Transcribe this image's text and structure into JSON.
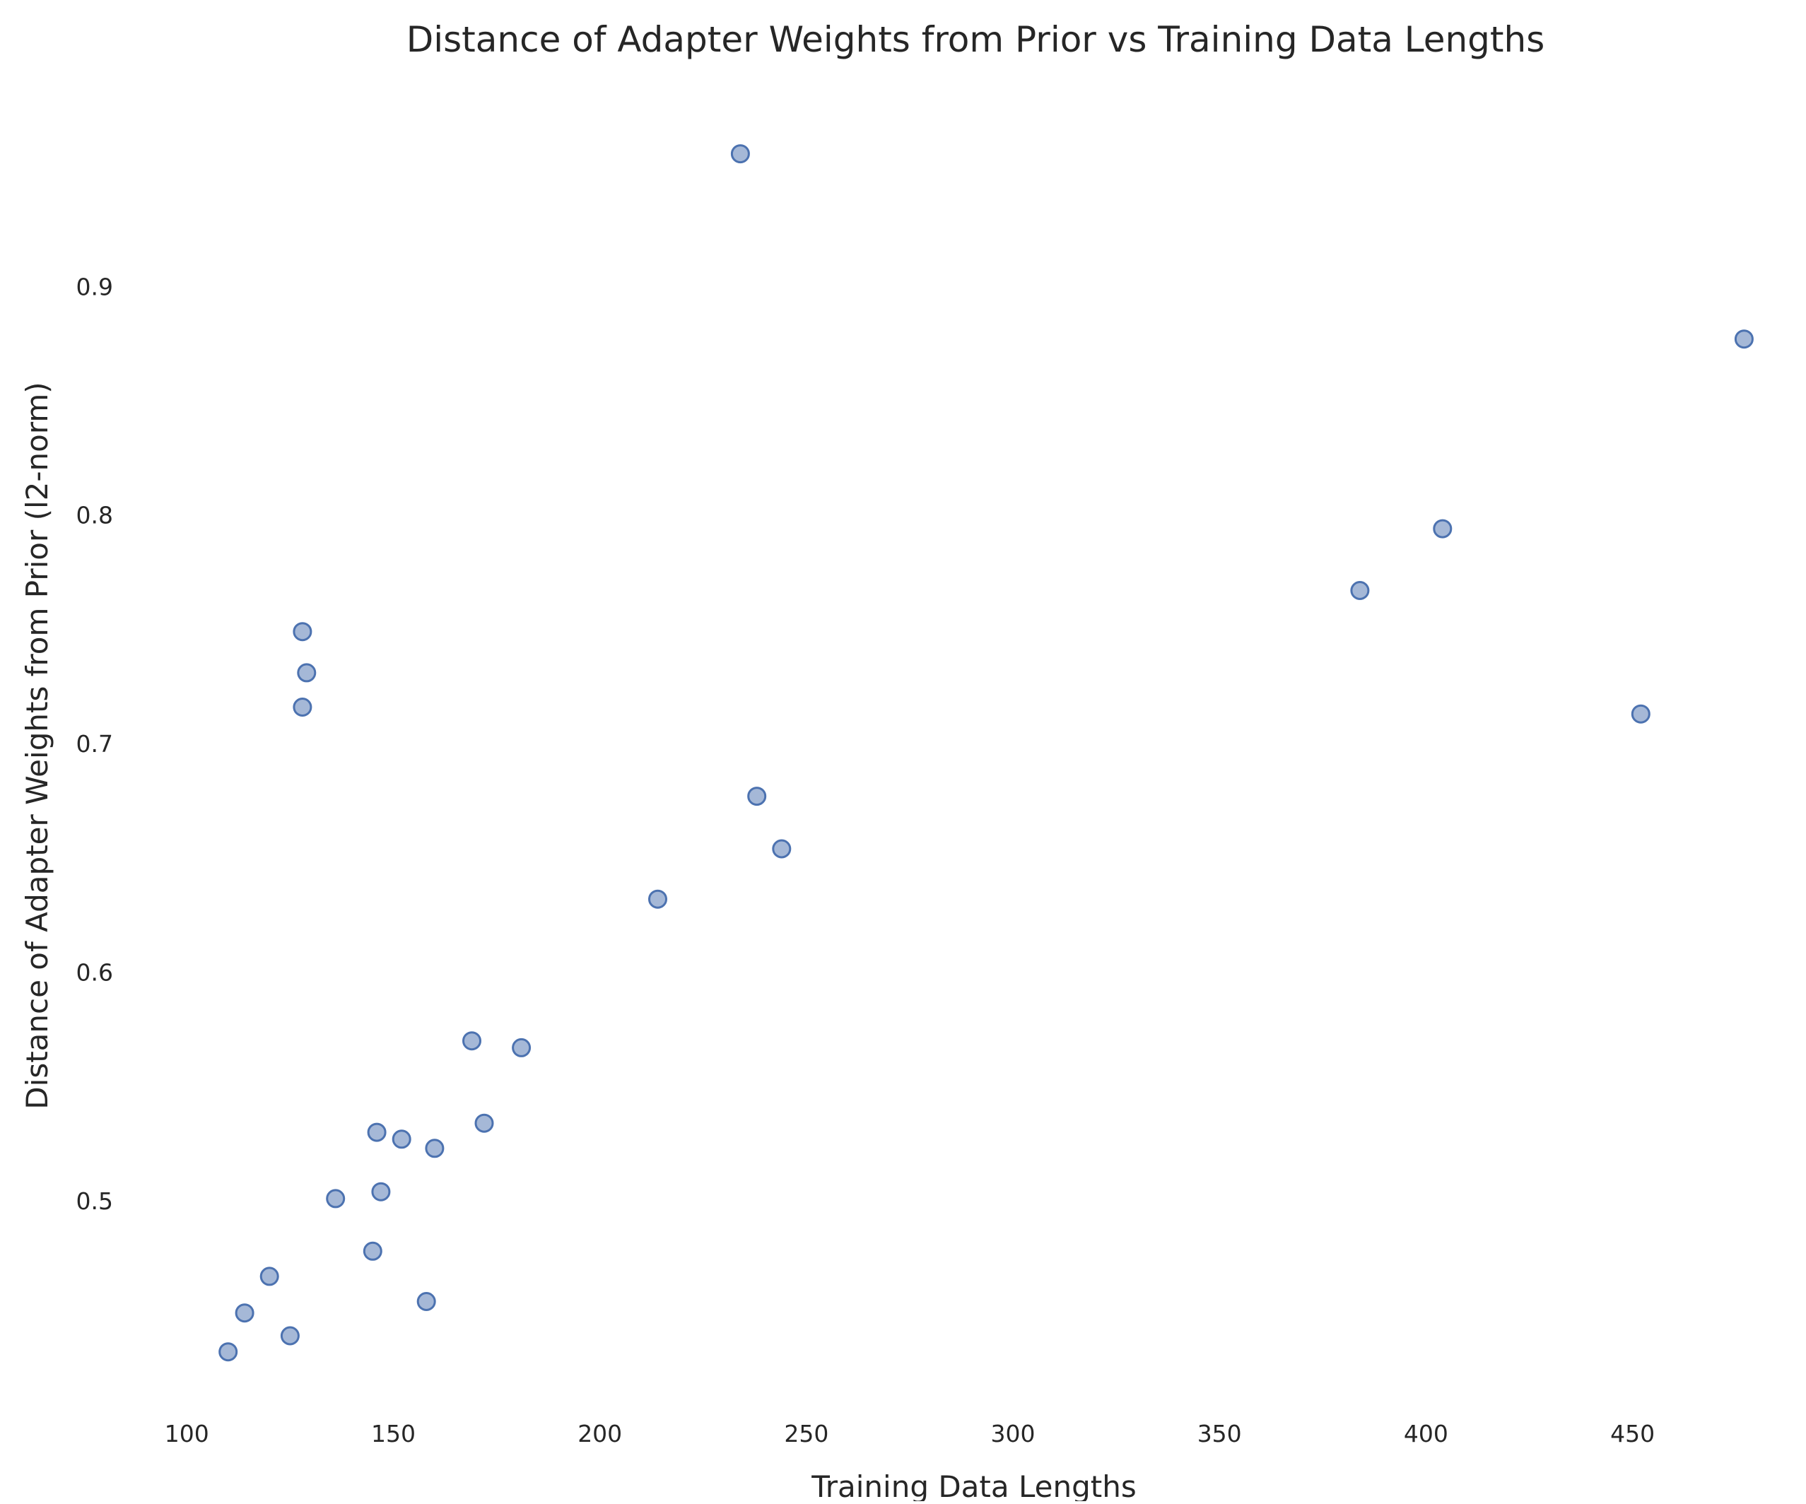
{
  "chart_data": {
    "type": "scatter",
    "title": "Distance of Adapter Weights from Prior vs Training Data Lengths",
    "xlabel": "Training Data Lengths",
    "ylabel": "Distance of Adapter Weights from Prior (l2-norm)",
    "xlim": [
      89,
      486
    ],
    "ylim": [
      0.407,
      0.982
    ],
    "xticks": [
      100,
      150,
      200,
      250,
      300,
      350,
      400,
      450
    ],
    "xtick_labels": [
      "100",
      "150",
      "200",
      "250",
      "300",
      "350",
      "400",
      "450"
    ],
    "yticks": [
      0.5,
      0.6,
      0.7,
      0.8,
      0.9
    ],
    "ytick_labels": [
      "0.5",
      "0.6",
      "0.7",
      "0.8",
      "0.9"
    ],
    "grid": false,
    "marker_color": "#4c72b0",
    "points": [
      {
        "x": 110,
        "y": 0.434
      },
      {
        "x": 114,
        "y": 0.451
      },
      {
        "x": 120,
        "y": 0.467
      },
      {
        "x": 125,
        "y": 0.441
      },
      {
        "x": 128,
        "y": 0.749
      },
      {
        "x": 129,
        "y": 0.731
      },
      {
        "x": 128,
        "y": 0.716
      },
      {
        "x": 136,
        "y": 0.501
      },
      {
        "x": 145,
        "y": 0.478
      },
      {
        "x": 146,
        "y": 0.53
      },
      {
        "x": 147,
        "y": 0.504
      },
      {
        "x": 152,
        "y": 0.527
      },
      {
        "x": 158,
        "y": 0.456
      },
      {
        "x": 160,
        "y": 0.523
      },
      {
        "x": 169,
        "y": 0.57
      },
      {
        "x": 172,
        "y": 0.534
      },
      {
        "x": 181,
        "y": 0.567
      },
      {
        "x": 214,
        "y": 0.632
      },
      {
        "x": 234,
        "y": 0.958
      },
      {
        "x": 238,
        "y": 0.677
      },
      {
        "x": 244,
        "y": 0.654
      },
      {
        "x": 384,
        "y": 0.767
      },
      {
        "x": 404,
        "y": 0.794
      },
      {
        "x": 452,
        "y": 0.713
      },
      {
        "x": 477,
        "y": 0.877
      }
    ]
  }
}
